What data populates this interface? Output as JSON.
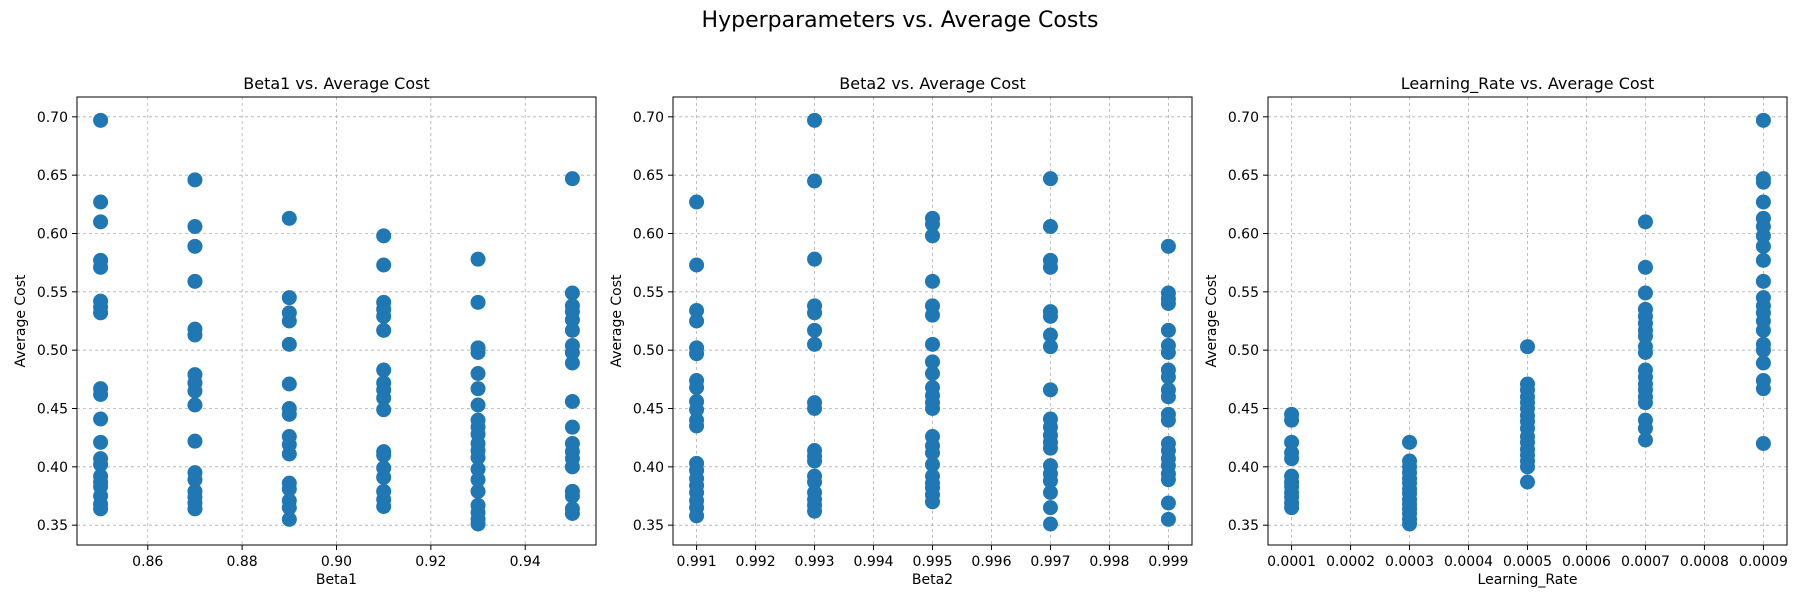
{
  "figure": {
    "title": "Hyperparameters vs. Average Costs"
  },
  "marker_color": "#1f77b4",
  "chart_data": [
    {
      "type": "scatter",
      "title": "Beta1 vs. Average Cost",
      "xlabel": "Beta1",
      "ylabel": "Average Cost",
      "xlim": [
        0.845,
        0.955
      ],
      "ylim": [
        0.333,
        0.717
      ],
      "xticks": [
        0.86,
        0.88,
        0.9,
        0.92,
        0.94
      ],
      "xtick_labels": [
        "0.86",
        "0.88",
        "0.90",
        "0.92",
        "0.94"
      ],
      "yticks": [
        0.35,
        0.4,
        0.45,
        0.5,
        0.55,
        0.6,
        0.65,
        0.7
      ],
      "ytick_labels": [
        "0.35",
        "0.40",
        "0.45",
        "0.50",
        "0.55",
        "0.60",
        "0.65",
        "0.70"
      ],
      "grid": true,
      "points": [
        [
          0.85,
          0.697
        ],
        [
          0.85,
          0.627
        ],
        [
          0.85,
          0.61
        ],
        [
          0.85,
          0.577
        ],
        [
          0.85,
          0.571
        ],
        [
          0.85,
          0.542
        ],
        [
          0.85,
          0.537
        ],
        [
          0.85,
          0.532
        ],
        [
          0.85,
          0.467
        ],
        [
          0.85,
          0.462
        ],
        [
          0.85,
          0.441
        ],
        [
          0.85,
          0.421
        ],
        [
          0.85,
          0.407
        ],
        [
          0.85,
          0.402
        ],
        [
          0.85,
          0.392
        ],
        [
          0.85,
          0.387
        ],
        [
          0.85,
          0.383
        ],
        [
          0.85,
          0.375
        ],
        [
          0.85,
          0.368
        ],
        [
          0.85,
          0.364
        ],
        [
          0.87,
          0.646
        ],
        [
          0.87,
          0.606
        ],
        [
          0.87,
          0.589
        ],
        [
          0.87,
          0.559
        ],
        [
          0.87,
          0.518
        ],
        [
          0.87,
          0.513
        ],
        [
          0.87,
          0.479
        ],
        [
          0.87,
          0.472
        ],
        [
          0.87,
          0.465
        ],
        [
          0.87,
          0.453
        ],
        [
          0.87,
          0.422
        ],
        [
          0.87,
          0.395
        ],
        [
          0.87,
          0.389
        ],
        [
          0.87,
          0.379
        ],
        [
          0.87,
          0.374
        ],
        [
          0.87,
          0.369
        ],
        [
          0.87,
          0.364
        ],
        [
          0.89,
          0.613
        ],
        [
          0.89,
          0.545
        ],
        [
          0.89,
          0.532
        ],
        [
          0.89,
          0.525
        ],
        [
          0.89,
          0.505
        ],
        [
          0.89,
          0.471
        ],
        [
          0.89,
          0.45
        ],
        [
          0.89,
          0.445
        ],
        [
          0.89,
          0.426
        ],
        [
          0.89,
          0.419
        ],
        [
          0.89,
          0.411
        ],
        [
          0.89,
          0.386
        ],
        [
          0.89,
          0.381
        ],
        [
          0.89,
          0.371
        ],
        [
          0.89,
          0.365
        ],
        [
          0.89,
          0.355
        ],
        [
          0.91,
          0.598
        ],
        [
          0.91,
          0.573
        ],
        [
          0.91,
          0.541
        ],
        [
          0.91,
          0.535
        ],
        [
          0.91,
          0.529
        ],
        [
          0.91,
          0.517
        ],
        [
          0.91,
          0.483
        ],
        [
          0.91,
          0.472
        ],
        [
          0.91,
          0.466
        ],
        [
          0.91,
          0.459
        ],
        [
          0.91,
          0.449
        ],
        [
          0.91,
          0.413
        ],
        [
          0.91,
          0.41
        ],
        [
          0.91,
          0.399
        ],
        [
          0.91,
          0.391
        ],
        [
          0.91,
          0.379
        ],
        [
          0.91,
          0.372
        ],
        [
          0.91,
          0.366
        ],
        [
          0.93,
          0.578
        ],
        [
          0.93,
          0.541
        ],
        [
          0.93,
          0.502
        ],
        [
          0.93,
          0.498
        ],
        [
          0.93,
          0.48
        ],
        [
          0.93,
          0.467
        ],
        [
          0.93,
          0.453
        ],
        [
          0.93,
          0.44
        ],
        [
          0.93,
          0.434
        ],
        [
          0.93,
          0.428
        ],
        [
          0.93,
          0.42
        ],
        [
          0.93,
          0.414
        ],
        [
          0.93,
          0.408
        ],
        [
          0.93,
          0.398
        ],
        [
          0.93,
          0.389
        ],
        [
          0.93,
          0.379
        ],
        [
          0.93,
          0.367
        ],
        [
          0.93,
          0.361
        ],
        [
          0.93,
          0.355
        ],
        [
          0.93,
          0.351
        ],
        [
          0.95,
          0.647
        ],
        [
          0.95,
          0.549
        ],
        [
          0.95,
          0.538
        ],
        [
          0.95,
          0.533
        ],
        [
          0.95,
          0.526
        ],
        [
          0.95,
          0.517
        ],
        [
          0.95,
          0.504
        ],
        [
          0.95,
          0.498
        ],
        [
          0.95,
          0.489
        ],
        [
          0.95,
          0.456
        ],
        [
          0.95,
          0.434
        ],
        [
          0.95,
          0.42
        ],
        [
          0.95,
          0.413
        ],
        [
          0.95,
          0.407
        ],
        [
          0.95,
          0.4
        ],
        [
          0.95,
          0.379
        ],
        [
          0.95,
          0.375
        ],
        [
          0.95,
          0.364
        ],
        [
          0.95,
          0.36
        ]
      ]
    },
    {
      "type": "scatter",
      "title": "Beta2 vs. Average Cost",
      "xlabel": "Beta2",
      "ylabel": "Average Cost",
      "xlim": [
        0.9906,
        0.9994
      ],
      "ylim": [
        0.333,
        0.717
      ],
      "xticks": [
        0.991,
        0.992,
        0.993,
        0.994,
        0.995,
        0.996,
        0.997,
        0.998,
        0.999
      ],
      "xtick_labels": [
        "0.991",
        "0.992",
        "0.993",
        "0.994",
        "0.995",
        "0.996",
        "0.997",
        "0.998",
        "0.999"
      ],
      "yticks": [
        0.35,
        0.4,
        0.45,
        0.5,
        0.55,
        0.6,
        0.65,
        0.7
      ],
      "ytick_labels": [
        "0.35",
        "0.40",
        "0.45",
        "0.50",
        "0.55",
        "0.60",
        "0.65",
        "0.70"
      ],
      "grid": true,
      "points": [
        [
          0.991,
          0.627
        ],
        [
          0.991,
          0.573
        ],
        [
          0.991,
          0.534
        ],
        [
          0.991,
          0.525
        ],
        [
          0.991,
          0.502
        ],
        [
          0.991,
          0.497
        ],
        [
          0.991,
          0.474
        ],
        [
          0.991,
          0.468
        ],
        [
          0.991,
          0.456
        ],
        [
          0.991,
          0.449
        ],
        [
          0.991,
          0.44
        ],
        [
          0.991,
          0.435
        ],
        [
          0.991,
          0.403
        ],
        [
          0.991,
          0.397
        ],
        [
          0.991,
          0.39
        ],
        [
          0.991,
          0.384
        ],
        [
          0.991,
          0.378
        ],
        [
          0.991,
          0.371
        ],
        [
          0.991,
          0.365
        ],
        [
          0.991,
          0.358
        ],
        [
          0.993,
          0.697
        ],
        [
          0.993,
          0.645
        ],
        [
          0.993,
          0.578
        ],
        [
          0.993,
          0.538
        ],
        [
          0.993,
          0.532
        ],
        [
          0.993,
          0.517
        ],
        [
          0.993,
          0.505
        ],
        [
          0.993,
          0.455
        ],
        [
          0.993,
          0.45
        ],
        [
          0.993,
          0.414
        ],
        [
          0.993,
          0.409
        ],
        [
          0.993,
          0.405
        ],
        [
          0.993,
          0.392
        ],
        [
          0.993,
          0.387
        ],
        [
          0.993,
          0.378
        ],
        [
          0.993,
          0.372
        ],
        [
          0.993,
          0.367
        ],
        [
          0.993,
          0.362
        ],
        [
          0.995,
          0.613
        ],
        [
          0.995,
          0.608
        ],
        [
          0.995,
          0.598
        ],
        [
          0.995,
          0.559
        ],
        [
          0.995,
          0.538
        ],
        [
          0.995,
          0.53
        ],
        [
          0.995,
          0.505
        ],
        [
          0.995,
          0.49
        ],
        [
          0.995,
          0.48
        ],
        [
          0.995,
          0.468
        ],
        [
          0.995,
          0.461
        ],
        [
          0.995,
          0.455
        ],
        [
          0.995,
          0.45
        ],
        [
          0.995,
          0.426
        ],
        [
          0.995,
          0.418
        ],
        [
          0.995,
          0.412
        ],
        [
          0.995,
          0.402
        ],
        [
          0.995,
          0.392
        ],
        [
          0.995,
          0.386
        ],
        [
          0.995,
          0.382
        ],
        [
          0.995,
          0.376
        ],
        [
          0.995,
          0.37
        ],
        [
          0.997,
          0.647
        ],
        [
          0.997,
          0.606
        ],
        [
          0.997,
          0.577
        ],
        [
          0.997,
          0.571
        ],
        [
          0.997,
          0.533
        ],
        [
          0.997,
          0.529
        ],
        [
          0.997,
          0.513
        ],
        [
          0.997,
          0.503
        ],
        [
          0.997,
          0.466
        ],
        [
          0.997,
          0.441
        ],
        [
          0.997,
          0.434
        ],
        [
          0.997,
          0.427
        ],
        [
          0.997,
          0.421
        ],
        [
          0.997,
          0.416
        ],
        [
          0.997,
          0.401
        ],
        [
          0.997,
          0.394
        ],
        [
          0.997,
          0.388
        ],
        [
          0.997,
          0.378
        ],
        [
          0.997,
          0.365
        ],
        [
          0.997,
          0.351
        ],
        [
          0.999,
          0.589
        ],
        [
          0.999,
          0.549
        ],
        [
          0.999,
          0.544
        ],
        [
          0.999,
          0.54
        ],
        [
          0.999,
          0.517
        ],
        [
          0.999,
          0.504
        ],
        [
          0.999,
          0.498
        ],
        [
          0.999,
          0.483
        ],
        [
          0.999,
          0.477
        ],
        [
          0.999,
          0.466
        ],
        [
          0.999,
          0.46
        ],
        [
          0.999,
          0.445
        ],
        [
          0.999,
          0.44
        ],
        [
          0.999,
          0.42
        ],
        [
          0.999,
          0.414
        ],
        [
          0.999,
          0.407
        ],
        [
          0.999,
          0.401
        ],
        [
          0.999,
          0.394
        ],
        [
          0.999,
          0.389
        ],
        [
          0.999,
          0.369
        ],
        [
          0.999,
          0.355
        ]
      ]
    },
    {
      "type": "scatter",
      "title": "Learning_Rate vs. Average Cost",
      "xlabel": "Learning_Rate",
      "ylabel": "Average Cost",
      "xlim": [
        6e-05,
        0.00094
      ],
      "ylim": [
        0.333,
        0.717
      ],
      "xticks": [
        0.0001,
        0.0002,
        0.0003,
        0.0004,
        0.0005,
        0.0006,
        0.0007,
        0.0008,
        0.0009
      ],
      "xtick_labels": [
        "0.0001",
        "0.0002",
        "0.0003",
        "0.0004",
        "0.0005",
        "0.0006",
        "0.0007",
        "0.0008",
        "0.0009"
      ],
      "yticks": [
        0.35,
        0.4,
        0.45,
        0.5,
        0.55,
        0.6,
        0.65,
        0.7
      ],
      "ytick_labels": [
        "0.35",
        "0.40",
        "0.45",
        "0.50",
        "0.55",
        "0.60",
        "0.65",
        "0.70"
      ],
      "grid": true,
      "points": [
        [
          0.0001,
          0.445
        ],
        [
          0.0001,
          0.44
        ],
        [
          0.0001,
          0.421
        ],
        [
          0.0001,
          0.412
        ],
        [
          0.0001,
          0.407
        ],
        [
          0.0001,
          0.392
        ],
        [
          0.0001,
          0.387
        ],
        [
          0.0001,
          0.383
        ],
        [
          0.0001,
          0.378
        ],
        [
          0.0001,
          0.374
        ],
        [
          0.0001,
          0.369
        ],
        [
          0.0001,
          0.365
        ],
        [
          0.0003,
          0.421
        ],
        [
          0.0003,
          0.405
        ],
        [
          0.0003,
          0.4
        ],
        [
          0.0003,
          0.395
        ],
        [
          0.0003,
          0.39
        ],
        [
          0.0003,
          0.386
        ],
        [
          0.0003,
          0.381
        ],
        [
          0.0003,
          0.377
        ],
        [
          0.0003,
          0.372
        ],
        [
          0.0003,
          0.368
        ],
        [
          0.0003,
          0.364
        ],
        [
          0.0003,
          0.36
        ],
        [
          0.0003,
          0.355
        ],
        [
          0.0003,
          0.351
        ],
        [
          0.0005,
          0.503
        ],
        [
          0.0005,
          0.471
        ],
        [
          0.0005,
          0.466
        ],
        [
          0.0005,
          0.46
        ],
        [
          0.0005,
          0.455
        ],
        [
          0.0005,
          0.45
        ],
        [
          0.0005,
          0.444
        ],
        [
          0.0005,
          0.439
        ],
        [
          0.0005,
          0.433
        ],
        [
          0.0005,
          0.426
        ],
        [
          0.0005,
          0.421
        ],
        [
          0.0005,
          0.415
        ],
        [
          0.0005,
          0.41
        ],
        [
          0.0005,
          0.405
        ],
        [
          0.0005,
          0.4
        ],
        [
          0.0005,
          0.387
        ],
        [
          0.0007,
          0.61
        ],
        [
          0.0007,
          0.571
        ],
        [
          0.0007,
          0.549
        ],
        [
          0.0007,
          0.535
        ],
        [
          0.0007,
          0.529
        ],
        [
          0.0007,
          0.523
        ],
        [
          0.0007,
          0.517
        ],
        [
          0.0007,
          0.512
        ],
        [
          0.0007,
          0.503
        ],
        [
          0.0007,
          0.498
        ],
        [
          0.0007,
          0.483
        ],
        [
          0.0007,
          0.477
        ],
        [
          0.0007,
          0.471
        ],
        [
          0.0007,
          0.466
        ],
        [
          0.0007,
          0.46
        ],
        [
          0.0007,
          0.455
        ],
        [
          0.0007,
          0.44
        ],
        [
          0.0007,
          0.433
        ],
        [
          0.0007,
          0.423
        ],
        [
          0.0009,
          0.697
        ],
        [
          0.0009,
          0.647
        ],
        [
          0.0009,
          0.644
        ],
        [
          0.0009,
          0.627
        ],
        [
          0.0009,
          0.613
        ],
        [
          0.0009,
          0.606
        ],
        [
          0.0009,
          0.598
        ],
        [
          0.0009,
          0.589
        ],
        [
          0.0009,
          0.577
        ],
        [
          0.0009,
          0.559
        ],
        [
          0.0009,
          0.545
        ],
        [
          0.0009,
          0.538
        ],
        [
          0.0009,
          0.532
        ],
        [
          0.0009,
          0.525
        ],
        [
          0.0009,
          0.517
        ],
        [
          0.0009,
          0.505
        ],
        [
          0.0009,
          0.5
        ],
        [
          0.0009,
          0.489
        ],
        [
          0.0009,
          0.474
        ],
        [
          0.0009,
          0.467
        ],
        [
          0.0009,
          0.42
        ]
      ]
    }
  ]
}
